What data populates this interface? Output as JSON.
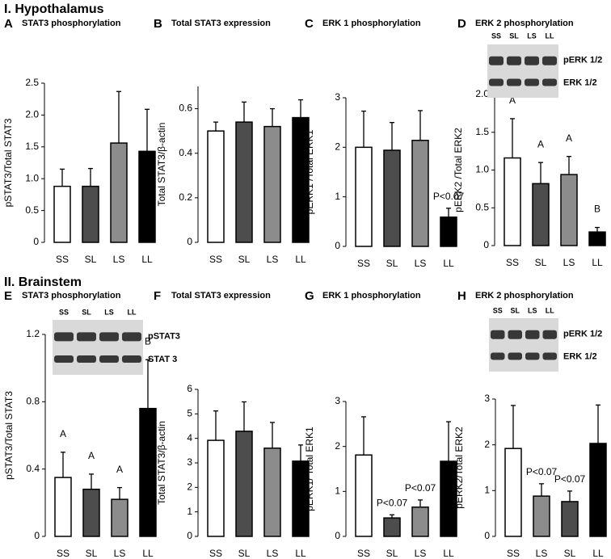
{
  "sections": [
    "I. Hypothalamus",
    "II. Brainstem"
  ],
  "chart_data": [
    {
      "type": "bar",
      "panel": "A",
      "title": "STAT3 phosphorylation",
      "ylabel": "pSTAT3/Total STAT3",
      "categories": [
        "SS",
        "SL",
        "LS",
        "LL"
      ],
      "values": [
        0.88,
        0.88,
        1.56,
        1.43
      ],
      "errors": [
        0.27,
        0.28,
        0.81,
        0.66
      ],
      "colors": [
        "#ffffff",
        "#4d4d4d",
        "#8c8c8c",
        "#000000"
      ],
      "ylim": [
        0,
        2.5
      ],
      "yticks": [
        0,
        0.5,
        {
          "value": 1,
          "label": "1.0"
        },
        1.5,
        {
          "value": 2,
          "label": "2.0"
        },
        2.5
      ]
    },
    {
      "type": "bar",
      "panel": "B",
      "title": "Total STAT3 expression",
      "ylabel": "Total STAT3/β-actin",
      "categories": [
        "SS",
        "SL",
        "LS",
        "LL"
      ],
      "values": [
        0.5,
        0.54,
        0.52,
        0.56
      ],
      "errors": [
        0.04,
        0.09,
        0.08,
        0.08
      ],
      "colors": [
        "#ffffff",
        "#4d4d4d",
        "#8c8c8c",
        "#000000"
      ],
      "ylim": [
        0,
        0.7
      ],
      "yticks": [
        0,
        0.2,
        0.4,
        0.6
      ]
    },
    {
      "type": "bar",
      "panel": "C",
      "title": "ERK 1 phosphorylation",
      "ylabel": "pERK1 /Total ERK1",
      "categories": [
        "SS",
        "SL",
        "LS",
        "LL"
      ],
      "values": [
        2.0,
        1.94,
        2.14,
        0.59
      ],
      "errors": [
        0.73,
        0.56,
        0.6,
        0.18
      ],
      "colors": [
        "#ffffff",
        "#4d4d4d",
        "#8c8c8c",
        "#000000"
      ],
      "ylim": [
        0,
        3
      ],
      "yticks": [
        0,
        1,
        2,
        3
      ],
      "bar_notes": [
        null,
        null,
        null,
        "P<0.07"
      ]
    },
    {
      "type": "bar",
      "panel": "D",
      "title": "ERK 2  phosphorylation",
      "ylabel": "pERK2 /Total ERK2",
      "categories": [
        "SS",
        "SL",
        "LS",
        "LL"
      ],
      "values": [
        1.16,
        0.82,
        0.94,
        0.18
      ],
      "errors": [
        0.52,
        0.28,
        0.24,
        0.06
      ],
      "colors": [
        "#ffffff",
        "#4d4d4d",
        "#8c8c8c",
        "#000000"
      ],
      "ylim": [
        0,
        2
      ],
      "yticks": [
        0,
        0.5,
        {
          "value": 1,
          "label": "1.0"
        },
        1.5,
        {
          "value": 2,
          "label": "2.0"
        }
      ],
      "bar_letters": [
        "A",
        "A",
        "A",
        "B"
      ],
      "blot": {
        "lanes": [
          "SS",
          "SL",
          "LS",
          "LL"
        ],
        "labels": [
          "pERK 1/2",
          "ERK 1/2"
        ]
      }
    },
    {
      "type": "bar",
      "panel": "E",
      "title": "STAT3 phosphorylation",
      "ylabel": "pSTAT3/Total STAT3",
      "categories": [
        "SS",
        "SL",
        "LS",
        "LL"
      ],
      "values": [
        0.35,
        0.28,
        0.22,
        0.76
      ],
      "errors": [
        0.15,
        0.09,
        0.07,
        0.29
      ],
      "colors": [
        "#ffffff",
        "#4d4d4d",
        "#8c8c8c",
        "#000000"
      ],
      "ylim": [
        0,
        1.2
      ],
      "yticks": [
        0,
        0.4,
        0.8,
        1.2
      ],
      "bar_letters": [
        "A",
        "A",
        "A",
        "B"
      ],
      "blot": {
        "lanes": [
          "SS",
          "SL",
          "LS",
          "LL"
        ],
        "labels": [
          "pSTAT3",
          "STAT 3"
        ]
      }
    },
    {
      "type": "bar",
      "panel": "F",
      "title": "Total STAT3 expression",
      "ylabel": "Total STAT3/β-actin",
      "categories": [
        "SS",
        "SL",
        "LS",
        "LL"
      ],
      "values": [
        3.92,
        4.29,
        3.6,
        3.07
      ],
      "errors": [
        1.2,
        1.2,
        1.05,
        0.66
      ],
      "colors": [
        "#ffffff",
        "#4d4d4d",
        "#8c8c8c",
        "#000000"
      ],
      "ylim": [
        0,
        6
      ],
      "yticks": [
        0,
        1,
        2,
        3,
        4,
        5,
        6
      ]
    },
    {
      "type": "bar",
      "panel": "G",
      "title": "ERK 1 phosphorylation",
      "ylabel": "pERK1/ Total ERK1",
      "categories": [
        "SS",
        "SL",
        "LS",
        "LL"
      ],
      "values": [
        1.81,
        0.41,
        0.65,
        1.67
      ],
      "errors": [
        0.85,
        0.07,
        0.16,
        0.88
      ],
      "colors": [
        "#ffffff",
        "#4d4d4d",
        "#8c8c8c",
        "#000000"
      ],
      "ylim": [
        0,
        3
      ],
      "yticks": [
        0,
        1,
        2,
        3
      ],
      "bar_notes": [
        null,
        "P<0.07",
        "P<0.07",
        null
      ]
    },
    {
      "type": "bar",
      "panel": "H",
      "title": "ERK 2 phosphorylation",
      "ylabel": "pERK2/Total ERK2",
      "categories": [
        "SS",
        "LS",
        "SL",
        "LL"
      ],
      "values": [
        1.92,
        0.88,
        0.76,
        2.03
      ],
      "errors": [
        0.94,
        0.27,
        0.23,
        0.84
      ],
      "colors": [
        "#ffffff",
        "#8c8c8c",
        "#4d4d4d",
        "#000000"
      ],
      "ylim": [
        0,
        3
      ],
      "yticks": [
        0,
        1,
        2,
        3
      ],
      "bar_notes": [
        null,
        "P<0.07",
        "P<0.07",
        null
      ],
      "blot": {
        "lanes": [
          "SS",
          "SL",
          "LS",
          "LL"
        ],
        "labels": [
          "pERK 1/2",
          "ERK 1/2"
        ]
      }
    }
  ]
}
